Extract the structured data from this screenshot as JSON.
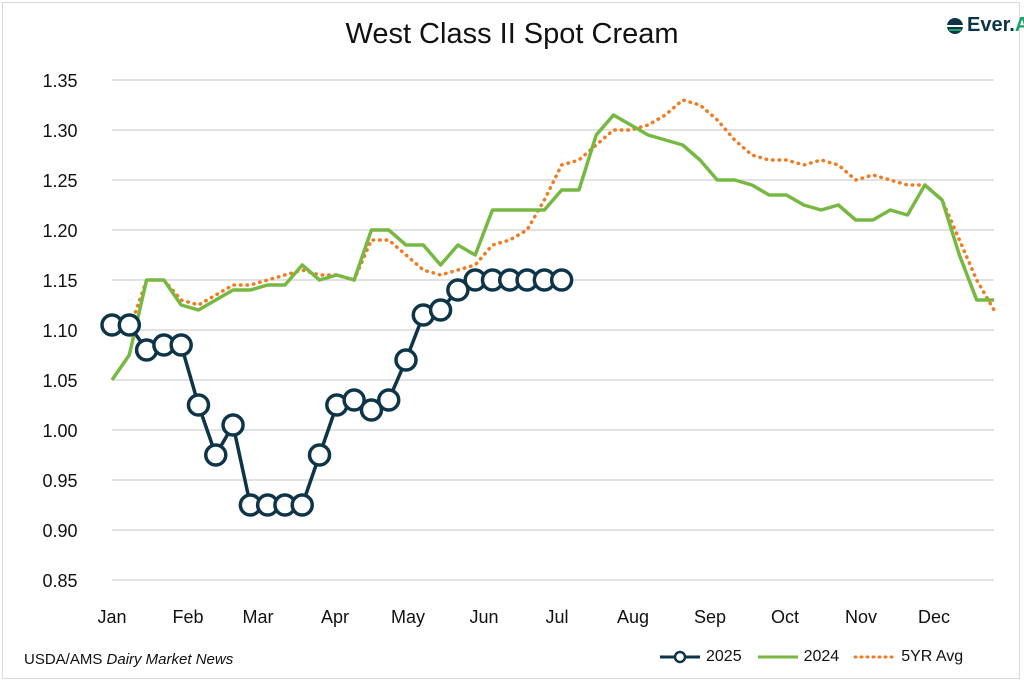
{
  "title": "West Class II Spot Cream",
  "logo_text": {
    "part1": "Ever.",
    "part2": "Ag"
  },
  "source": {
    "prefix": "USDA/AMS ",
    "italic": "Dairy Market News"
  },
  "colors": {
    "s2025": "#0e3547",
    "s2024": "#77b843",
    "avg": "#ef7c23",
    "grid": "#d0d0d0"
  },
  "chart_data": {
    "type": "line",
    "title": "West Class II Spot Cream",
    "xlabel": "",
    "ylabel": "",
    "ylim": [
      0.85,
      1.35
    ],
    "yticks": [
      "0.85",
      "0.90",
      "0.95",
      "1.00",
      "1.05",
      "1.10",
      "1.15",
      "1.20",
      "1.25",
      "1.30",
      "1.35"
    ],
    "xticks": [
      "Jan",
      "Feb",
      "Mar",
      "Apr",
      "May",
      "Jun",
      "Jul",
      "Aug",
      "Sep",
      "Oct",
      "Nov",
      "Dec"
    ],
    "x_unit": "week of year (0-51)",
    "grid": true,
    "legend_placement": "bottom-right",
    "series": [
      {
        "name": "2025",
        "style": "line-markers",
        "values": [
          1.105,
          1.105,
          1.08,
          1.085,
          1.085,
          1.025,
          0.975,
          1.005,
          0.925,
          0.925,
          0.925,
          0.925,
          0.975,
          1.025,
          1.03,
          1.02,
          1.03,
          1.07,
          1.115,
          1.12,
          1.14,
          1.15,
          1.15,
          1.15,
          1.15,
          1.15,
          1.15
        ]
      },
      {
        "name": "2024",
        "style": "line",
        "values": [
          1.05,
          1.075,
          1.15,
          1.15,
          1.125,
          1.12,
          1.13,
          1.14,
          1.14,
          1.145,
          1.145,
          1.165,
          1.15,
          1.155,
          1.15,
          1.2,
          1.2,
          1.185,
          1.185,
          1.165,
          1.185,
          1.175,
          1.22,
          1.22,
          1.22,
          1.22,
          1.24,
          1.24,
          1.295,
          1.315,
          1.305,
          1.295,
          1.29,
          1.285,
          1.27,
          1.25,
          1.25,
          1.245,
          1.235,
          1.235,
          1.225,
          1.22,
          1.225,
          1.21,
          1.21,
          1.22,
          1.215,
          1.245,
          1.23,
          1.175,
          1.13,
          1.13
        ]
      },
      {
        "name": "5YR Avg",
        "style": "dotted",
        "values": [
          1.11,
          1.1,
          1.15,
          1.15,
          1.13,
          1.125,
          1.135,
          1.145,
          1.145,
          1.15,
          1.155,
          1.16,
          1.155,
          1.155,
          1.15,
          1.19,
          1.19,
          1.175,
          1.16,
          1.155,
          1.16,
          1.165,
          1.185,
          1.19,
          1.2,
          1.23,
          1.265,
          1.27,
          1.285,
          1.3,
          1.3,
          1.305,
          1.315,
          1.33,
          1.325,
          1.31,
          1.29,
          1.275,
          1.27,
          1.27,
          1.265,
          1.27,
          1.265,
          1.25,
          1.255,
          1.25,
          1.245,
          1.245,
          1.23,
          1.19,
          1.15,
          1.12
        ]
      }
    ]
  }
}
